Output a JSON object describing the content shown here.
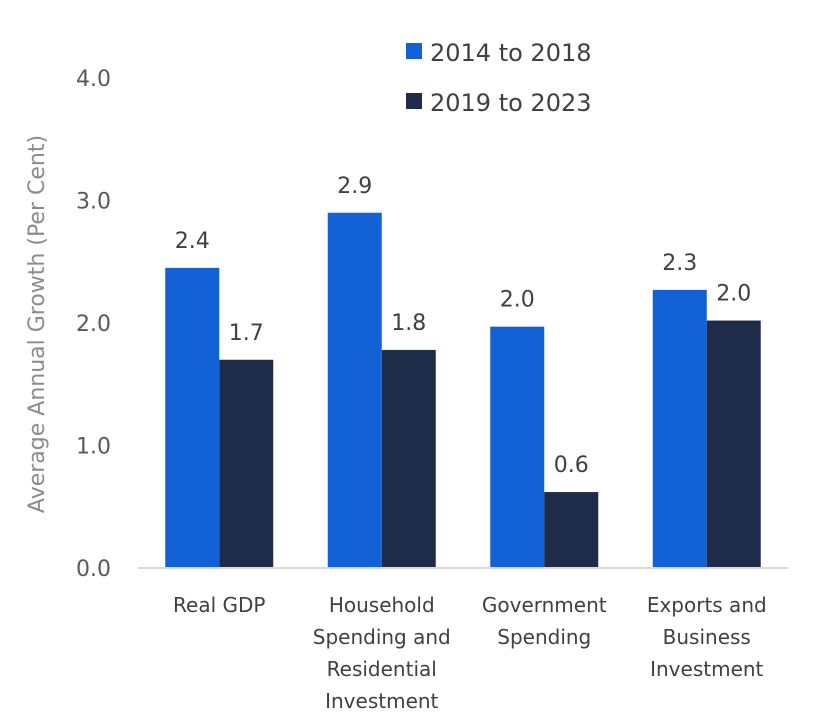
{
  "chart_data": {
    "type": "bar",
    "title": "",
    "xlabel": "",
    "ylabel": "Average Annual Growth (Per Cent)",
    "ylim": [
      0,
      4
    ],
    "yticks": [
      "0.0",
      "1.0",
      "2.0",
      "3.0",
      "4.0"
    ],
    "grid": false,
    "legend_position": "top-right",
    "categories": [
      [
        "Real GDP"
      ],
      [
        "Household",
        "Spending and",
        "Residential",
        "Investment"
      ],
      [
        "Government",
        "Spending"
      ],
      [
        "Exports and",
        "Business",
        "Investment"
      ]
    ],
    "series": [
      {
        "name": "2014 to 2018",
        "color": "#1361D6",
        "values": [
          2.45,
          2.9,
          1.97,
          2.27
        ],
        "labels": [
          "2.4",
          "2.9",
          "2.0",
          "2.3"
        ]
      },
      {
        "name": "2019 to 2023",
        "color": "#1E2C4A",
        "values": [
          1.7,
          1.78,
          0.62,
          2.02
        ],
        "labels": [
          "1.7",
          "1.8",
          "0.6",
          "2.0"
        ]
      }
    ]
  }
}
